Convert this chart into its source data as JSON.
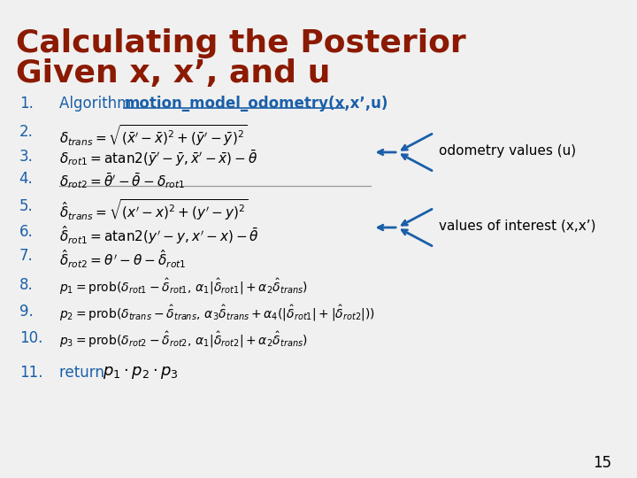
{
  "title_line1": "Calculating the Posterior",
  "title_line2": "Given x, x’, and u",
  "title_color": "#8B1A00",
  "bg_color": "#f0f0f0",
  "number_color": "#1a5fa8",
  "formula_color": "#000000",
  "arrow_color": "#1a5fa8",
  "label_color": "#000000",
  "page_number": "15",
  "line1_prefix": "Algorithm  ",
  "line1_bold": "motion_model_odometry(x,x’,u)",
  "odometry_label": "odometry values (u)",
  "interest_label": "values of interest (x,x’)",
  "numbers": [
    "1.",
    "2.",
    "3.",
    "4.",
    "5.",
    "6.",
    "7.",
    "8.",
    "9.",
    "10.",
    "11."
  ]
}
